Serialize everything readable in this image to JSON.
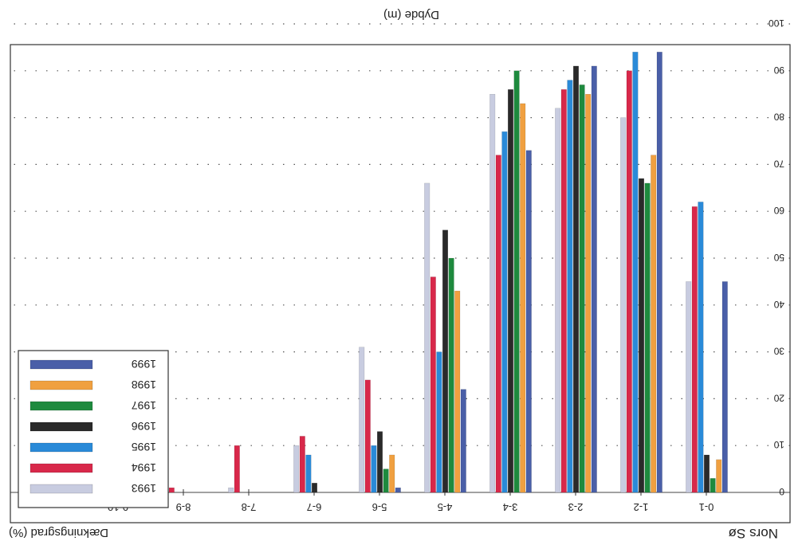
{
  "chart_data": {
    "type": "bar",
    "orientation": "rotated-180",
    "title": "Nors Sø",
    "xlabel": "Dybde (m)",
    "ylabel": "Dækningsgrad (%)",
    "categories": [
      "0-1",
      "1-2",
      "2-3",
      "3-4",
      "4-5",
      "5-6",
      "6-7",
      "7-8",
      "8-9",
      "9-10"
    ],
    "y_ticks": [
      0,
      10,
      20,
      30,
      40,
      50,
      60,
      70,
      80,
      90,
      100
    ],
    "ylim": [
      0,
      100
    ],
    "grid": true,
    "legend_position": "bottom-left",
    "series": [
      {
        "name": "1999",
        "color": "#4a5fa8",
        "values": [
          45,
          94,
          91,
          73,
          22,
          1,
          0,
          0,
          0,
          0
        ]
      },
      {
        "name": "1998",
        "color": "#f0a040",
        "values": [
          7,
          72,
          85,
          83,
          43,
          8,
          0,
          0,
          0,
          0
        ]
      },
      {
        "name": "1997",
        "color": "#1e8a3e",
        "values": [
          3,
          66,
          87,
          90,
          50,
          5,
          0,
          0,
          0,
          0
        ]
      },
      {
        "name": "1996",
        "color": "#2a2a2a",
        "values": [
          8,
          67,
          91,
          86,
          56,
          13,
          2,
          0,
          0,
          0
        ]
      },
      {
        "name": "1995",
        "color": "#2a8ad8",
        "values": [
          62,
          94,
          88,
          77,
          30,
          10,
          8,
          0,
          0,
          0
        ]
      },
      {
        "name": "1994",
        "color": "#d8284a",
        "values": [
          61,
          90,
          86,
          72,
          46,
          24,
          12,
          10,
          1,
          0
        ]
      },
      {
        "name": "1993",
        "color": "#c8cce0",
        "values": [
          45,
          80,
          82,
          85,
          66,
          31,
          10,
          1,
          1,
          1
        ]
      }
    ]
  }
}
